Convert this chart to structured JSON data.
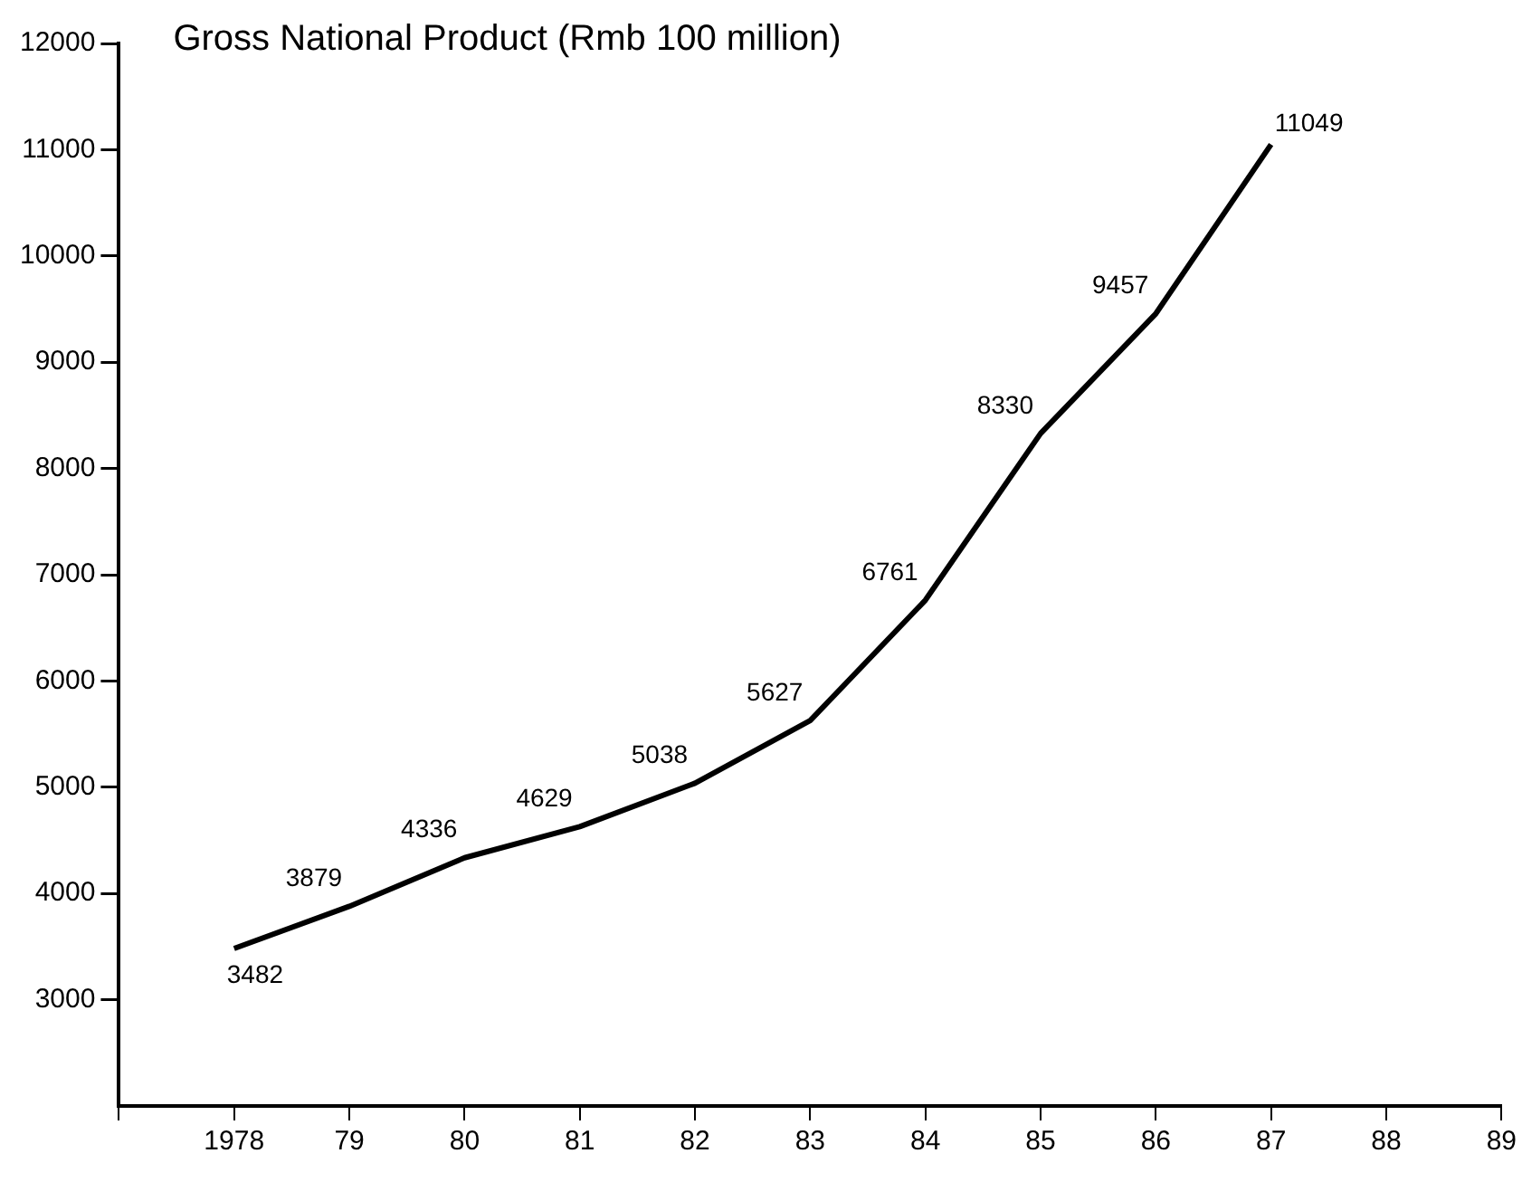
{
  "chart_data": {
    "type": "line",
    "title": "Gross National Product (Rmb 100 million)",
    "x": [
      1978,
      1979,
      1980,
      1981,
      1982,
      1983,
      1984,
      1985,
      1986,
      1987
    ],
    "series": [
      {
        "color": "#000000",
        "values": [
          3482,
          3879,
          4336,
          4629,
          5038,
          5627,
          6761,
          8330,
          9457,
          11049
        ]
      }
    ],
    "xlim": [
      1977,
      1989
    ],
    "xticks": [
      {
        "value": 1977,
        "label": null
      },
      {
        "value": 1978,
        "label": "1978"
      },
      {
        "value": 1979,
        "label": "79"
      },
      {
        "value": 1980,
        "label": "80"
      },
      {
        "value": 1981,
        "label": "81"
      },
      {
        "value": 1982,
        "label": "82"
      },
      {
        "value": 1983,
        "label": "83"
      },
      {
        "value": 1984,
        "label": "84"
      },
      {
        "value": 1985,
        "label": "85"
      },
      {
        "value": 1986,
        "label": "86"
      },
      {
        "value": 1987,
        "label": "87"
      },
      {
        "value": 1988,
        "label": "88"
      },
      {
        "value": 1989,
        "label": "89"
      }
    ],
    "ylim": [
      2000,
      12000
    ],
    "yticks": [
      3000,
      4000,
      5000,
      6000,
      7000,
      8000,
      9000,
      10000,
      11000,
      12000
    ],
    "data_labels": true,
    "grid": false,
    "legend": false,
    "marker": "none",
    "line_style": "solid"
  }
}
